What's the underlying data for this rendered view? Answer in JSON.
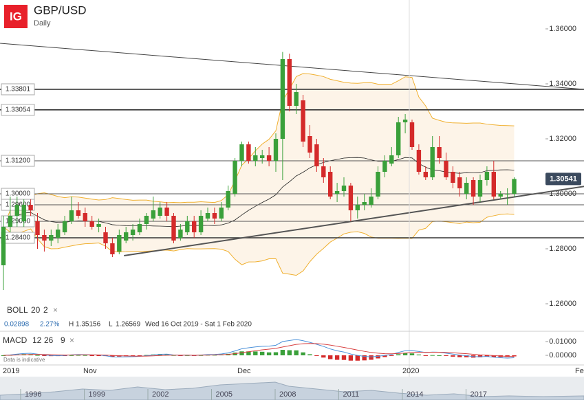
{
  "header": {
    "logo": "IG",
    "symbol": "GBP/USD",
    "interval": "Daily"
  },
  "chart_data": {
    "type": "candlestick",
    "ohlc": [
      [
        1.274,
        1.292,
        1.265,
        1.288
      ],
      [
        1.288,
        1.299,
        1.286,
        1.292
      ],
      [
        1.292,
        1.299,
        1.288,
        1.296
      ],
      [
        1.29,
        1.298,
        1.288,
        1.296
      ],
      [
        1.296,
        1.298,
        1.292,
        1.294
      ],
      [
        1.29,
        1.293,
        1.28,
        1.285
      ],
      [
        1.285,
        1.287,
        1.279,
        1.283
      ],
      [
        1.283,
        1.287,
        1.281,
        1.285
      ],
      [
        1.284,
        1.289,
        1.282,
        1.287
      ],
      [
        1.286,
        1.292,
        1.285,
        1.29
      ],
      [
        1.29,
        1.299,
        1.289,
        1.294
      ],
      [
        1.294,
        1.297,
        1.291,
        1.292
      ],
      [
        1.293,
        1.295,
        1.288,
        1.29
      ],
      [
        1.29,
        1.292,
        1.287,
        1.288
      ],
      [
        1.288,
        1.291,
        1.286,
        1.289
      ],
      [
        1.286,
        1.288,
        1.28,
        1.282
      ],
      [
        1.282,
        1.284,
        1.277,
        1.278
      ],
      [
        1.279,
        1.287,
        1.278,
        1.285
      ],
      [
        1.283,
        1.288,
        1.282,
        1.286
      ],
      [
        1.285,
        1.289,
        1.283,
        1.287
      ],
      [
        1.286,
        1.291,
        1.285,
        1.289
      ],
      [
        1.289,
        1.293,
        1.287,
        1.292
      ],
      [
        1.291,
        1.299,
        1.29,
        1.294
      ],
      [
        1.292,
        1.297,
        1.291,
        1.295
      ],
      [
        1.295,
        1.297,
        1.29,
        1.292
      ],
      [
        1.292,
        1.293,
        1.282,
        1.283
      ],
      [
        1.284,
        1.289,
        1.283,
        1.287
      ],
      [
        1.286,
        1.292,
        1.285,
        1.29
      ],
      [
        1.29,
        1.292,
        1.284,
        1.286
      ],
      [
        1.286,
        1.294,
        1.285,
        1.292
      ],
      [
        1.291,
        1.295,
        1.29,
        1.293
      ],
      [
        1.293,
        1.295,
        1.289,
        1.291
      ],
      [
        1.291,
        1.297,
        1.29,
        1.295
      ],
      [
        1.295,
        1.303,
        1.294,
        1.301
      ],
      [
        1.3,
        1.313,
        1.299,
        1.312
      ],
      [
        1.312,
        1.319,
        1.31,
        1.318
      ],
      [
        1.318,
        1.319,
        1.311,
        1.312
      ],
      [
        1.312,
        1.317,
        1.31,
        1.314
      ],
      [
        1.313,
        1.316,
        1.311,
        1.314
      ],
      [
        1.314,
        1.317,
        1.31,
        1.312
      ],
      [
        1.312,
        1.322,
        1.308,
        1.32
      ],
      [
        1.32,
        1.3516,
        1.305,
        1.349
      ],
      [
        1.349,
        1.351,
        1.33,
        1.332
      ],
      [
        1.332,
        1.34,
        1.329,
        1.337
      ],
      [
        1.334,
        1.336,
        1.317,
        1.319
      ],
      [
        1.321,
        1.325,
        1.313,
        1.315
      ],
      [
        1.318,
        1.32,
        1.308,
        1.31
      ],
      [
        1.31,
        1.313,
        1.304,
        1.306
      ],
      [
        1.308,
        1.31,
        1.298,
        1.299
      ],
      [
        1.3,
        1.304,
        1.297,
        1.301
      ],
      [
        1.301,
        1.306,
        1.299,
        1.303
      ],
      [
        1.303,
        1.304,
        1.29,
        1.294
      ],
      [
        1.294,
        1.299,
        1.291,
        1.296
      ],
      [
        1.296,
        1.3,
        1.294,
        1.297
      ],
      [
        1.296,
        1.302,
        1.295,
        1.299
      ],
      [
        1.299,
        1.31,
        1.298,
        1.308
      ],
      [
        1.308,
        1.314,
        1.306,
        1.312
      ],
      [
        1.311,
        1.317,
        1.31,
        1.314
      ],
      [
        1.314,
        1.328,
        1.313,
        1.326
      ],
      [
        1.326,
        1.329,
        1.322,
        1.327
      ],
      [
        1.326,
        1.327,
        1.316,
        1.317
      ],
      [
        1.316,
        1.318,
        1.307,
        1.308
      ],
      [
        1.308,
        1.31,
        1.305,
        1.306
      ],
      [
        1.306,
        1.321,
        1.305,
        1.317
      ],
      [
        1.317,
        1.321,
        1.311,
        1.313
      ],
      [
        1.312,
        1.315,
        1.305,
        1.306
      ],
      [
        1.308,
        1.31,
        1.302,
        1.304
      ],
      [
        1.306,
        1.308,
        1.299,
        1.302
      ],
      [
        1.3,
        1.306,
        1.298,
        1.304
      ],
      [
        1.305,
        1.306,
        1.296,
        1.299
      ],
      [
        1.299,
        1.307,
        1.297,
        1.305
      ],
      [
        1.305,
        1.31,
        1.303,
        1.308
      ],
      [
        1.308,
        1.312,
        1.298,
        1.299
      ],
      [
        1.299,
        1.301,
        1.298,
        1.3
      ],
      [
        1.3,
        1.302,
        1.296,
        1.3
      ],
      [
        1.3,
        1.306,
        1.299,
        1.3054
      ]
    ],
    "colors": {
      "up": "#3aa03a",
      "down": "#d42a2a",
      "band": "#f0b030",
      "band_fill": "#fdf4e8",
      "sma": "#222222"
    },
    "ylim": [
      1.2535,
      1.3705
    ],
    "yticks": [
      {
        "value": 1.36,
        "label": "1.36000"
      },
      {
        "value": 1.34,
        "label": "1.34000"
      },
      {
        "value": 1.32,
        "label": "1.32000"
      },
      {
        "value": 1.3,
        "label": "1.30000"
      },
      {
        "value": 1.28,
        "label": "1.28000"
      },
      {
        "value": 1.26,
        "label": "1.26000"
      }
    ],
    "levels": [
      {
        "value": 1.33801,
        "label": "1.33801"
      },
      {
        "value": 1.33054,
        "label": "1.33054"
      },
      {
        "value": 1.312,
        "label": "1.31200"
      },
      {
        "value": 1.3,
        "label": "1.30000"
      },
      {
        "value": 1.296,
        "label": "1.29600"
      },
      {
        "value": 1.29,
        "label": "1.29000"
      },
      {
        "value": 1.284,
        "label": "1.28400"
      }
    ],
    "trendlines": [
      {
        "x": [
          -0.5,
          85.3
        ],
        "y": [
          1.35475,
          1.338
        ]
      },
      {
        "x": [
          17.7,
          85.3
        ],
        "y": [
          1.2775,
          1.3027
        ]
      }
    ],
    "last": {
      "value": 1.30541,
      "label": "1.30541"
    },
    "x_labels": [
      "2019",
      "Nov",
      "Dec",
      "2020",
      "Fe"
    ],
    "boll": {
      "name": "BOLL",
      "period": 20,
      "stddev": 2,
      "close": "×"
    },
    "stats": {
      "change": 0.02898,
      "change_pct": "2.27%",
      "high_label": "H",
      "high": 1.35156,
      "low_label": "L",
      "low": 1.26569,
      "range": "Wed 16 Oct 2019 - Sat 1 Feb 2020"
    },
    "macd": {
      "name": "MACD",
      "fast": 12,
      "slow": 26,
      "signal": 9,
      "close": "×",
      "ylim": [
        -0.0065,
        0.017
      ],
      "yticks": [
        {
          "value": 0.01,
          "label": "0.01000"
        },
        {
          "value": 0,
          "label": "0.00000"
        }
      ],
      "colors": {
        "macd": "#4a90d9",
        "signal": "#d84040"
      }
    },
    "note": "Data is indicative",
    "navigator": {
      "years": [
        "1996",
        "1999",
        "2002",
        "2005",
        "2008",
        "2011",
        "2014",
        "2017"
      ]
    }
  }
}
